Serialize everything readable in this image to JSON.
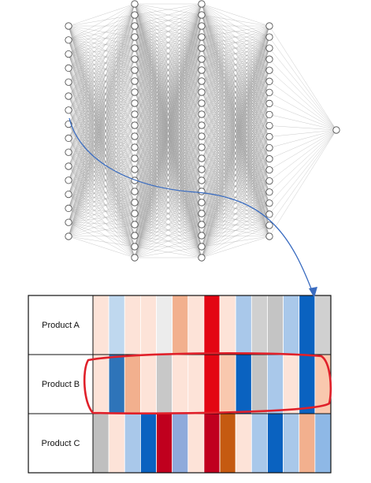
{
  "network": {
    "layer_node_counts": [
      16,
      24,
      24,
      20,
      1
    ]
  },
  "table": {
    "rows": [
      {
        "label": "Product A",
        "cells": [
          "#fde3d8",
          "#bfd8ef",
          "#fde3d8",
          "#fde3d8",
          "#ececec",
          "#f2b08e",
          "#fde3d8",
          "#e30613",
          "#fde3d8",
          "#a9c8ea",
          "#d0d0d0",
          "#c4c4c4",
          "#a9c8ea",
          "#0a62c0",
          "#d0d0d0"
        ]
      },
      {
        "label": "Product B",
        "cells": [
          "#fde3d8",
          "#2e74b9",
          "#f2b08e",
          "#fde3d8",
          "#c8c8c8",
          "#fde3d8",
          "#fde3d8",
          "#e30613",
          "#f9c8ae",
          "#0a62c0",
          "#c4c4c4",
          "#a9c8ea",
          "#fde3d8",
          "#0a62c0",
          "#f9c8ae"
        ]
      },
      {
        "label": "Product C",
        "cells": [
          "#bfbfbf",
          "#fde3d8",
          "#a9c8ea",
          "#0a62c0",
          "#c0001e",
          "#8eaadb",
          "#fde3d8",
          "#c0001e",
          "#c55a11",
          "#fde3d8",
          "#a9c8ea",
          "#0a62c0",
          "#a9c8ea",
          "#f2b08e",
          "#8eb8e6"
        ]
      }
    ]
  },
  "colors": {
    "connection_line": "#9a9a9a",
    "node_stroke": "#444444",
    "arrow": "#3a6cc0",
    "highlight": "#e0202a",
    "grid": "#111111"
  }
}
